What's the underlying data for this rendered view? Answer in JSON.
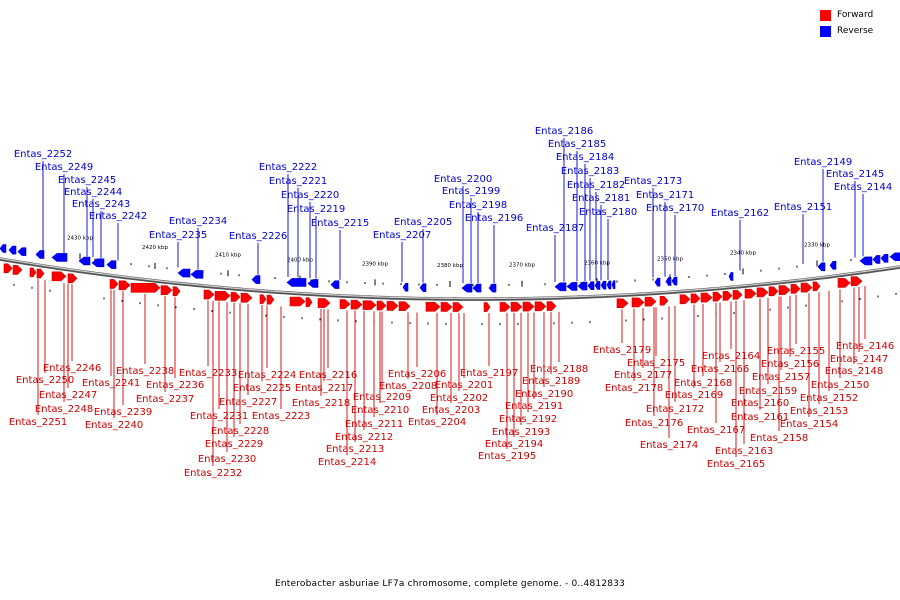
{
  "legend": [
    {
      "label": "Forward",
      "color": "#ff0000"
    },
    {
      "label": "Reverse",
      "color": "#0000ff"
    }
  ],
  "caption": "Enterobacter asburiae LF7a chromosome, complete genome. - 0..4812833",
  "colors": {
    "forward": "#cc0000",
    "forward_fill": "#ff0000",
    "reverse": "#0000cc",
    "reverse_fill": "#0000ff",
    "backbone": "#888888"
  },
  "scale": {
    "ticks": [
      {
        "label": "2430 kbp"
      },
      {
        "label": "2420 kbp"
      },
      {
        "label": "2410 kbp"
      },
      {
        "label": "2400 kbp"
      },
      {
        "label": "2390 kbp"
      },
      {
        "label": "2380 kbp"
      },
      {
        "label": "2370 kbp"
      },
      {
        "label": "2360 kbp"
      },
      {
        "label": "2350 kbp"
      },
      {
        "label": "2340 kbp"
      },
      {
        "label": "2330 kbp"
      }
    ]
  },
  "reverse_genes": [
    "Entas_2252",
    "Entas_2249",
    "Entas_2245",
    "Entas_2244",
    "Entas_2243",
    "Entas_2242",
    "Entas_2235",
    "Entas_2234",
    "Entas_2226",
    "Entas_2222",
    "Entas_2221",
    "Entas_2220",
    "Entas_2219",
    "Entas_2215",
    "Entas_2207",
    "Entas_2205",
    "Entas_2200",
    "Entas_2199",
    "Entas_2198",
    "Entas_2196",
    "Entas_2187",
    "Entas_2186",
    "Entas_2185",
    "Entas_2184",
    "Entas_2183",
    "Entas_2182",
    "Entas_2181",
    "Entas_2180",
    "Entas_2173",
    "Entas_2171",
    "Entas_2170",
    "Entas_2162",
    "Entas_2151",
    "Entas_2149",
    "Entas_2145",
    "Entas_2144"
  ],
  "forward_genes": [
    "Entas_2246",
    "Entas_2250",
    "Entas_2247",
    "Entas_2248",
    "Entas_2251",
    "Entas_2241",
    "Entas_2239",
    "Entas_2240",
    "Entas_2238",
    "Entas_2236",
    "Entas_2237",
    "Entas_2233",
    "Entas_2231",
    "Entas_2228",
    "Entas_2229",
    "Entas_2230",
    "Entas_2232",
    "Entas_2224",
    "Entas_2225",
    "Entas_2227",
    "Entas_2223",
    "Entas_2216",
    "Entas_2217",
    "Entas_2218",
    "Entas_2209",
    "Entas_2210",
    "Entas_2211",
    "Entas_2212",
    "Entas_2213",
    "Entas_2214",
    "Entas_2206",
    "Entas_2208",
    "Entas_2203",
    "Entas_2204",
    "Entas_2201",
    "Entas_2202",
    "Entas_2197",
    "Entas_2191",
    "Entas_2192",
    "Entas_2193",
    "Entas_2194",
    "Entas_2195",
    "Entas_2188",
    "Entas_2189",
    "Entas_2190",
    "Entas_2179",
    "Entas_2175",
    "Entas_2177",
    "Entas_2178",
    "Entas_2172",
    "Entas_2176",
    "Entas_2174",
    "Entas_2169",
    "Entas_2168",
    "Entas_2166",
    "Entas_2164",
    "Entas_2167",
    "Entas_2163",
    "Entas_2165",
    "Entas_2161",
    "Entas_2160",
    "Entas_2159",
    "Entas_2158",
    "Entas_2157",
    "Entas_2156",
    "Entas_2155",
    "Entas_2154",
    "Entas_2153",
    "Entas_2152",
    "Entas_2150",
    "Entas_2148",
    "Entas_2147",
    "Entas_2146"
  ]
}
